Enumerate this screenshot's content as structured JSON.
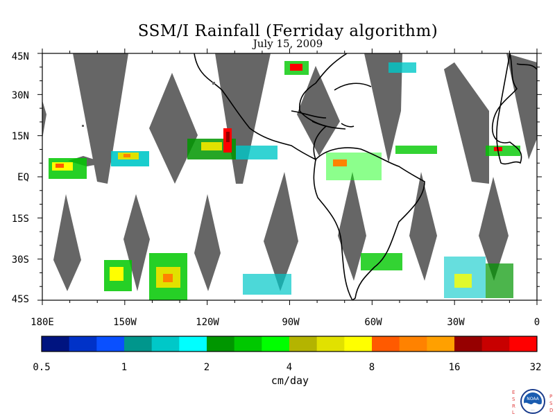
{
  "title": "SSM/I Rainfall (Ferriday algorithm)",
  "subtitle": "July 15, 2009",
  "lat_labels": [
    "45N",
    "30N",
    "15N",
    "EQ",
    "15S",
    "30S",
    "45S"
  ],
  "lon_labels": [
    "180E",
    "150W",
    "120W",
    "90W",
    "60W",
    "30W",
    "0"
  ],
  "colorbar": {
    "colors": [
      "#001480",
      "#0032c8",
      "#0a50ff",
      "#00968c",
      "#00c8c8",
      "#00ffff",
      "#009600",
      "#00c800",
      "#00ff00",
      "#b4b400",
      "#e1e100",
      "#ffff00",
      "#ff5a00",
      "#ff8200",
      "#ffa000",
      "#960000",
      "#c80000",
      "#ff0000"
    ],
    "tick_labels": [
      "0.5",
      "1",
      "2",
      "4",
      "8",
      "16",
      "32"
    ],
    "units": "cm/day"
  },
  "map": {
    "extent": {
      "lon_min": -180,
      "lon_max": 0,
      "lat_min": -45,
      "lat_max": 45
    },
    "no_data_color": "#666666",
    "land_outline_color": "#000000"
  },
  "logo": {
    "left_letters": [
      "E",
      "S",
      "R",
      "L"
    ],
    "right_letters": [
      "P",
      "S",
      "D"
    ],
    "text": "NOAA"
  }
}
